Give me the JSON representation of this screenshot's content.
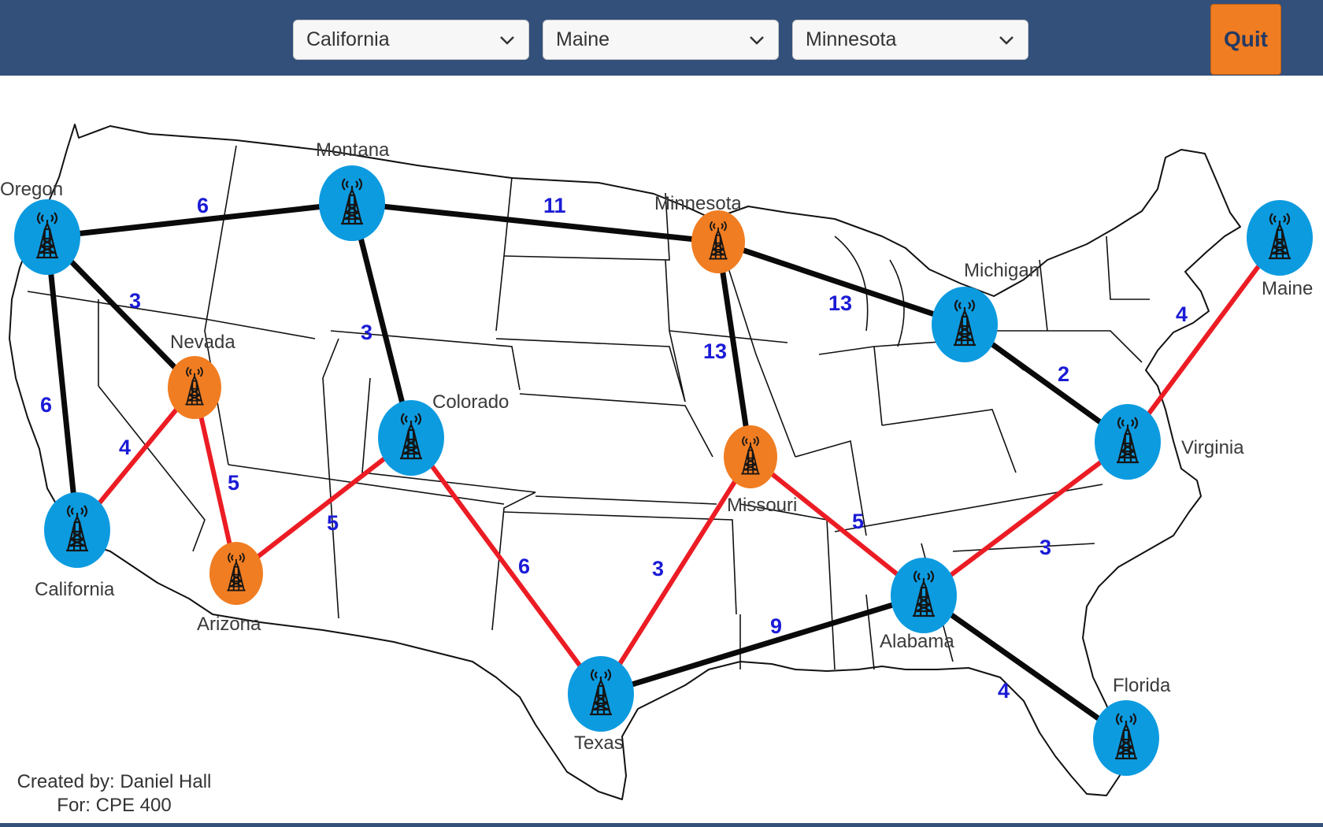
{
  "toolbar": {
    "start_select": "California",
    "end_select": "Maine",
    "via_select": "Minnesota",
    "quit_label": "Quit"
  },
  "colors": {
    "header": "#32507a",
    "tower_default": "#0d9be0",
    "tower_selected": "#f07d22",
    "edge_default": "#0a0a0a",
    "edge_path": "#ec1c24",
    "weight_label": "#1b1bd6"
  },
  "nodes": {
    "oregon": "Oregon",
    "montana": "Montana",
    "minnesota": "Minnesota",
    "michigan": "Michigan",
    "maine": "Maine",
    "nevada": "Nevada",
    "colorado": "Colorado",
    "virginia": "Virginia",
    "california": "California",
    "missouri": "Missouri",
    "arizona": "Arizona",
    "alabama": "Alabama",
    "texas": "Texas",
    "florida": "Florida"
  },
  "weights": {
    "oregon_montana": "6",
    "montana_minnesota": "11",
    "oregon_nevada": "3",
    "montana_colorado": "3",
    "minnesota_michigan": "13",
    "michigan_virginia": "2",
    "virginia_maine": "4",
    "oregon_california": "6",
    "minnesota_missouri": "13",
    "california_nevada": "4",
    "nevada_arizona": "5",
    "arizona_colorado": "5",
    "colorado_texas": "6",
    "texas_missouri": "3",
    "missouri_alabama": "5",
    "alabama_virginia": "3",
    "texas_alabama": "9",
    "alabama_florida": "4"
  },
  "footer": {
    "created_by": "Created by: Daniel Hall",
    "course": "For: CPE 400"
  }
}
